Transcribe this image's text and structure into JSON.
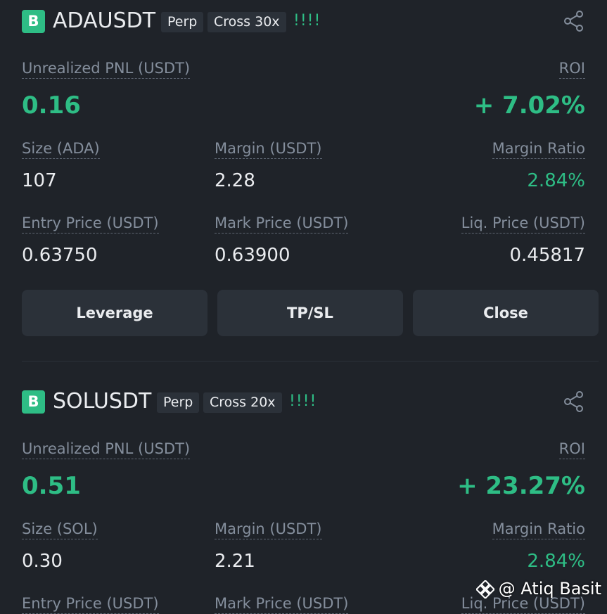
{
  "positions": [
    {
      "badge": "B",
      "symbol": "ADAUSDT",
      "tags": [
        "Perp",
        "Cross 30x"
      ],
      "signal": "!!!!",
      "pnl_label": "Unrealized PNL (USDT)",
      "pnl": "0.16",
      "roi_label": "ROI",
      "roi": "+ 7.02%",
      "rows": [
        [
          {
            "label": "Size (ADA)",
            "value": "107"
          },
          {
            "label": "Margin (USDT)",
            "value": "2.28"
          },
          {
            "label": "Margin Ratio",
            "value": "2.84%"
          }
        ],
        [
          {
            "label": "Entry Price (USDT)",
            "value": "0.63750"
          },
          {
            "label": "Mark Price (USDT)",
            "value": "0.63900"
          },
          {
            "label": "Liq. Price (USDT)",
            "value": "0.45817"
          }
        ]
      ],
      "buttons": [
        "Leverage",
        "TP/SL",
        "Close"
      ]
    },
    {
      "badge": "B",
      "symbol": "SOLUSDT",
      "tags": [
        "Perp",
        "Cross 20x"
      ],
      "signal": "!!!!",
      "pnl_label": "Unrealized PNL (USDT)",
      "pnl": "0.51",
      "roi_label": "ROI",
      "roi": "+ 23.27%",
      "rows": [
        [
          {
            "label": "Size (SOL)",
            "value": "0.30"
          },
          {
            "label": "Margin (USDT)",
            "value": "2.21"
          },
          {
            "label": "Margin Ratio",
            "value": "2.84%"
          }
        ],
        [
          {
            "label": "Entry Price (USDT)"
          },
          {
            "label": "Mark Price (USDT)"
          },
          {
            "label": "Liq. Price (USDT)"
          }
        ]
      ]
    }
  ],
  "watermark": "@ Atiq Basit"
}
